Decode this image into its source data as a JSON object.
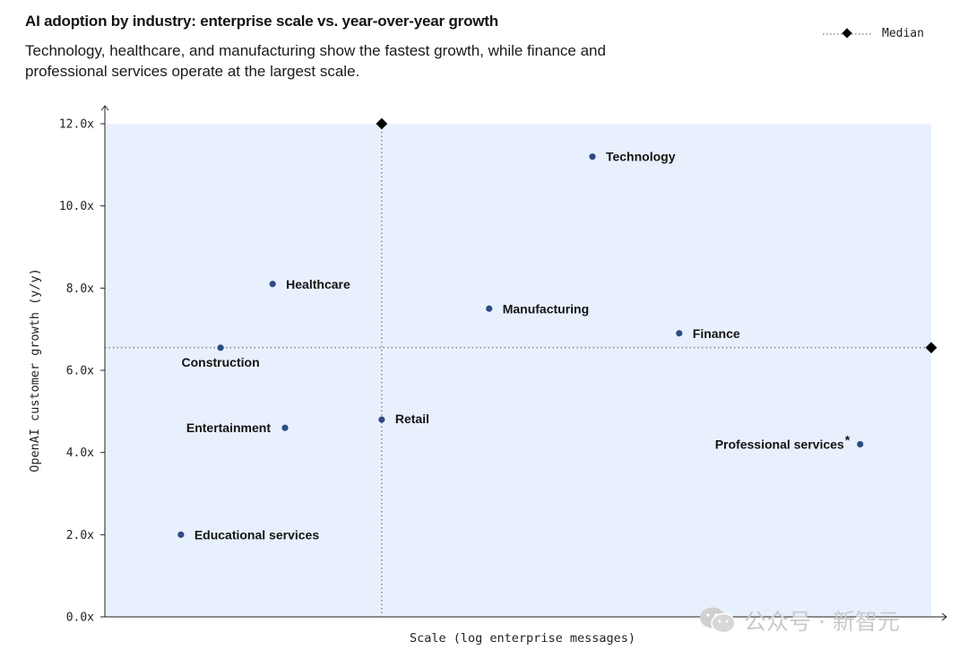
{
  "header": {
    "title": "AI adoption by industry: enterprise scale vs. year-over-year growth",
    "subtitle": "Technology, healthcare, and manufacturing show the fastest growth, while finance and professional services operate at the largest scale."
  },
  "legend": {
    "label": "Median"
  },
  "watermark": {
    "text": "公众号 · 新智元"
  },
  "chart_data": {
    "type": "scatter",
    "title": "AI adoption by industry: enterprise scale vs. year-over-year growth",
    "xlabel": "Scale (log enterprise messages)",
    "ylabel": "OpenAI customer growth (y/y)",
    "xlim": [
      0,
      100
    ],
    "ylim": [
      0,
      12
    ],
    "yticks": [
      0,
      2,
      4,
      6,
      8,
      10,
      12
    ],
    "ytick_labels": [
      "0.0x",
      "2.0x",
      "4.0x",
      "6.0x",
      "8.0x",
      "10.0x",
      "12.0x"
    ],
    "x_ticks_shown": false,
    "median": {
      "x": 33.5,
      "y": 6.55
    },
    "colors": {
      "background": "#e8f0fd",
      "point": "#2f4a86",
      "guide": "#555555",
      "marker": "#000000"
    },
    "points": [
      {
        "name": "Technology",
        "x": 59,
        "y": 11.2
      },
      {
        "name": "Healthcare",
        "x": 20.3,
        "y": 8.1
      },
      {
        "name": "Manufacturing",
        "x": 46.5,
        "y": 7.5
      },
      {
        "name": "Finance",
        "x": 69.5,
        "y": 6.9
      },
      {
        "name": "Construction",
        "x": 14,
        "y": 6.55
      },
      {
        "name": "Retail",
        "x": 33.5,
        "y": 4.8
      },
      {
        "name": "Entertainment",
        "x": 21.8,
        "y": 4.6
      },
      {
        "name": "Professional services",
        "x": 91.4,
        "y": 4.2
      },
      {
        "name": "Educational services",
        "x": 9.2,
        "y": 2.0
      }
    ]
  }
}
